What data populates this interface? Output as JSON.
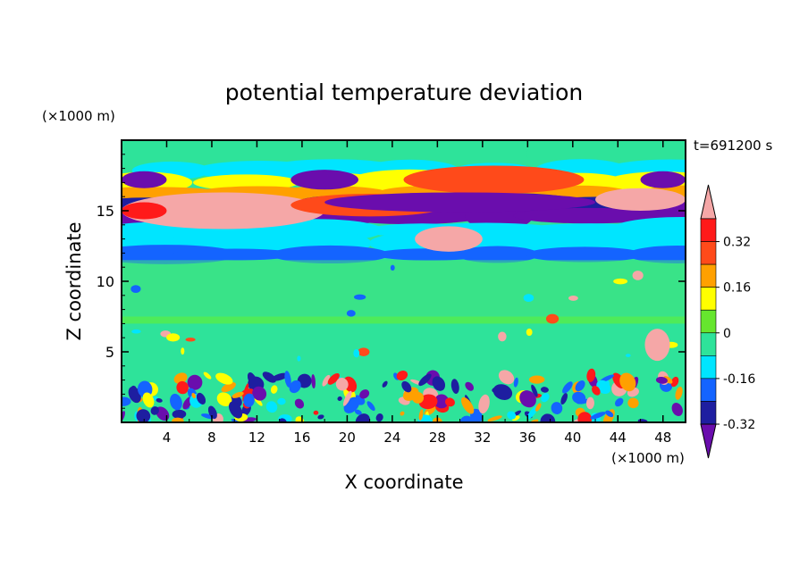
{
  "chart_data": {
    "type": "heatmap",
    "title": "potential temperature deviation",
    "xlabel": "X coordinate",
    "ylabel": "Z coordinate",
    "x_unit": "(×1000 m)",
    "y_unit": "(×1000 m)",
    "time_label": "t=691200 s",
    "xlim": [
      0,
      50
    ],
    "ylim": [
      0,
      20
    ],
    "x_ticks": [
      "4",
      "8",
      "12",
      "16",
      "20",
      "24",
      "28",
      "32",
      "36",
      "40",
      "44",
      "48"
    ],
    "y_ticks": [
      "5",
      "10",
      "15"
    ],
    "colorbar": {
      "levels": [
        -0.4,
        -0.32,
        -0.24,
        -0.16,
        -0.08,
        0,
        0.08,
        0.16,
        0.24,
        0.32,
        0.4
      ],
      "labels": [
        "0.32",
        "0.16",
        "0",
        "-0.16",
        "-0.32"
      ],
      "colors_low_to_high": [
        "#6a0dad",
        "#1e1ea0",
        "#1464ff",
        "#00e5ff",
        "#2ee39a",
        "#66e62e",
        "#ffff00",
        "#ffa000",
        "#ff4a1a",
        "#ff1a1a",
        "#f5a7a7"
      ]
    },
    "colors": {
      "background_band": "#2ee39a"
    }
  }
}
